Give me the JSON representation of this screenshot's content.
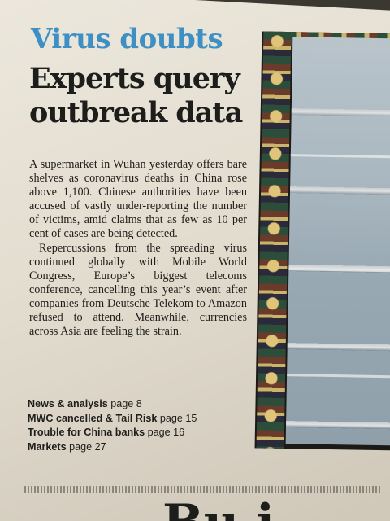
{
  "article": {
    "kicker": "Virus doubts",
    "headline": "Experts query outbreak data",
    "paragraphs": [
      "A supermarket in Wuhan yesterday offers bare shelves as coronavirus deaths in China rose above 1,100. Chinese authorities have been accused of vastly under-reporting the number of victims, amid claims that as few as 10 per cent of cases are being detected.",
      "Repercussions from the spreading virus continued globally with Mobile World Congress, Europe’s biggest telecoms conference, cancelling this year’s event after companies from Deutsche Telekom to Amazon refused to attend. Meanwhile, currencies across Asia are feeling the strain."
    ],
    "references": [
      {
        "label": "News & analysis",
        "page": "page 8"
      },
      {
        "label": "MWC cancelled & Tail Risk",
        "page": "page 15"
      },
      {
        "label": "Trouble for China banks",
        "page": "page 16"
      },
      {
        "label": "Markets",
        "page": "page 27"
      }
    ]
  },
  "next_headline_fragment": "Bu i",
  "colors": {
    "kicker": "#3d8fc4",
    "headline": "#1d1d1b",
    "paper": "#e6e0d4"
  }
}
